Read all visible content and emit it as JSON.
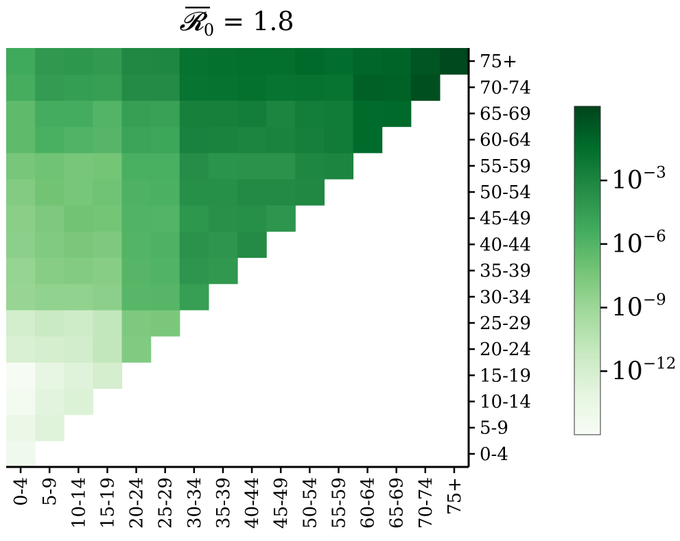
{
  "chart_data": {
    "type": "heatmap",
    "title": {
      "symbol": "𝓡",
      "subscript": "0",
      "rest": " = 1.8"
    },
    "x_categories": [
      "0-4",
      "5-9",
      "10-14",
      "15-19",
      "20-24",
      "25-29",
      "30-34",
      "35-39",
      "40-44",
      "45-49",
      "50-54",
      "55-59",
      "60-64",
      "65-69",
      "70-74",
      "75+"
    ],
    "y_categories": [
      "0-4",
      "5-9",
      "10-14",
      "15-19",
      "20-24",
      "25-29",
      "30-34",
      "35-39",
      "40-44",
      "45-49",
      "50-54",
      "55-59",
      "60-64",
      "65-69",
      "70-74",
      "75+"
    ],
    "y_axis_side": "right",
    "y_order": "0-4 at bottom, 75+ at top",
    "mask": "lower triangle shown; cells where row age group index <= column age group index",
    "colormap": "Greens",
    "scale": "log",
    "color_range_log10": [
      -15,
      0.5
    ],
    "colorbar": {
      "placement": "right",
      "ticks": [
        {
          "base": "10",
          "exponent": "−3",
          "log10": -3
        },
        {
          "base": "10",
          "exponent": "−6",
          "log10": -6
        },
        {
          "base": "10",
          "exponent": "−9",
          "log10": -9
        },
        {
          "base": "10",
          "exponent": "−12",
          "log10": -12
        }
      ]
    },
    "values_log10": [
      [
        -14.3,
        -13.7,
        -14.6,
        -14.9,
        -12.3,
        -11.9,
        -8.8,
        -8.7,
        -8.3,
        -8.2,
        -7.9,
        -7.4,
        -6.5,
        -6.5,
        -5.5,
        -5.2
      ],
      [
        null,
        -12.7,
        -12.9,
        -13.3,
        -12.0,
        -11.3,
        -8.5,
        -8.1,
        -7.8,
        -7.7,
        -7.2,
        -7.1,
        -5.6,
        -5.4,
        -4.4,
        -4.2
      ],
      [
        null,
        null,
        -12.5,
        -12.7,
        -11.8,
        -11.6,
        -8.5,
        -7.9,
        -7.5,
        -7.2,
        -7.4,
        -7.4,
        -5.9,
        -5.4,
        -4.5,
        -4.1
      ],
      [
        null,
        null,
        null,
        -12.0,
        -10.9,
        -10.9,
        -8.3,
        -8.1,
        -7.7,
        -7.3,
        -7.1,
        -7.3,
        -6.1,
        -6.0,
        -4.6,
        -4.3
      ],
      [
        null,
        null,
        null,
        null,
        -7.8,
        -7.7,
        -6.2,
        -6.1,
        -6.0,
        -5.9,
        -5.8,
        -5.6,
        -4.9,
        -4.6,
        -3.4,
        -3.2
      ],
      [
        null,
        null,
        null,
        null,
        null,
        -7.5,
        -6.1,
        -5.9,
        -5.8,
        -6.0,
        -5.7,
        -5.6,
        -5.0,
        -4.7,
        -3.4,
        -3.1
      ],
      [
        null,
        null,
        null,
        null,
        null,
        null,
        -4.6,
        -4.0,
        -3.8,
        -4.1,
        -3.6,
        -3.5,
        -2.8,
        -2.7,
        -1.9,
        -1.8
      ],
      [
        null,
        null,
        null,
        null,
        null,
        null,
        null,
        -4.2,
        -4.0,
        -3.7,
        -3.6,
        -3.9,
        -2.9,
        -2.7,
        -1.8,
        -1.7
      ],
      [
        null,
        null,
        null,
        null,
        null,
        null,
        null,
        null,
        -3.4,
        -3.6,
        -3.3,
        -3.8,
        -3.0,
        -2.5,
        -1.7,
        -1.6
      ],
      [
        null,
        null,
        null,
        null,
        null,
        null,
        null,
        null,
        null,
        -4.0,
        -3.3,
        -3.8,
        -2.9,
        -3.0,
        -1.9,
        -1.6
      ],
      [
        null,
        null,
        null,
        null,
        null,
        null,
        null,
        null,
        null,
        null,
        -3.2,
        -3.1,
        -2.6,
        -2.5,
        -1.8,
        -1.3
      ],
      [
        null,
        null,
        null,
        null,
        null,
        null,
        null,
        null,
        null,
        null,
        null,
        -3.0,
        -2.4,
        -2.4,
        -1.9,
        -1.5
      ],
      [
        null,
        null,
        null,
        null,
        null,
        null,
        null,
        null,
        null,
        null,
        null,
        null,
        -1.4,
        -1.4,
        -0.8,
        -1.1
      ],
      [
        null,
        null,
        null,
        null,
        null,
        null,
        null,
        null,
        null,
        null,
        null,
        null,
        null,
        -1.3,
        -0.9,
        -1.0
      ],
      [
        null,
        null,
        null,
        null,
        null,
        null,
        null,
        null,
        null,
        null,
        null,
        null,
        null,
        null,
        0.0,
        -0.3
      ],
      [
        null,
        null,
        null,
        null,
        null,
        null,
        null,
        null,
        null,
        null,
        null,
        null,
        null,
        null,
        null,
        0.3
      ]
    ]
  }
}
